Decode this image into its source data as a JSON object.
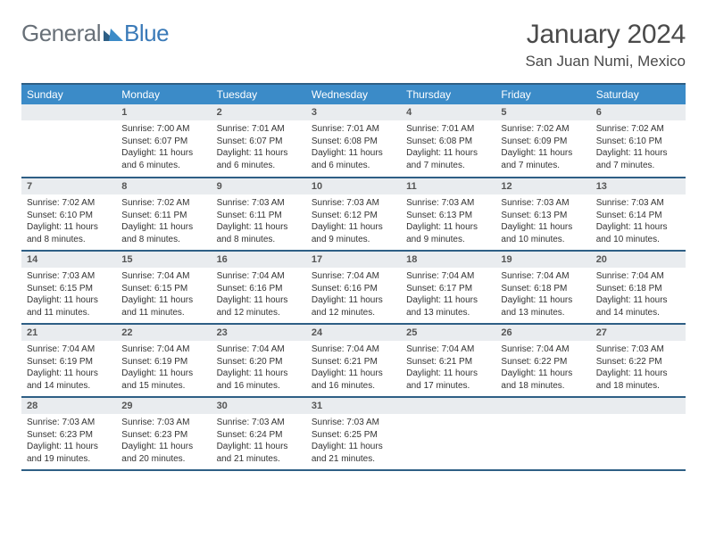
{
  "logo": {
    "part1": "General",
    "part2": "Blue"
  },
  "title": "January 2024",
  "location": "San Juan Numi, Mexico",
  "colors": {
    "header_bg": "#3b8bc8",
    "header_border": "#2e5f85",
    "daynum_bg": "#e9ecef",
    "logo_gray": "#687078",
    "logo_blue": "#3a7ab8"
  },
  "weekdays": [
    "Sunday",
    "Monday",
    "Tuesday",
    "Wednesday",
    "Thursday",
    "Friday",
    "Saturday"
  ],
  "weeks": [
    [
      {
        "day": "",
        "lines": []
      },
      {
        "day": "1",
        "lines": [
          "Sunrise: 7:00 AM",
          "Sunset: 6:07 PM",
          "Daylight: 11 hours and 6 minutes."
        ]
      },
      {
        "day": "2",
        "lines": [
          "Sunrise: 7:01 AM",
          "Sunset: 6:07 PM",
          "Daylight: 11 hours and 6 minutes."
        ]
      },
      {
        "day": "3",
        "lines": [
          "Sunrise: 7:01 AM",
          "Sunset: 6:08 PM",
          "Daylight: 11 hours and 6 minutes."
        ]
      },
      {
        "day": "4",
        "lines": [
          "Sunrise: 7:01 AM",
          "Sunset: 6:08 PM",
          "Daylight: 11 hours and 7 minutes."
        ]
      },
      {
        "day": "5",
        "lines": [
          "Sunrise: 7:02 AM",
          "Sunset: 6:09 PM",
          "Daylight: 11 hours and 7 minutes."
        ]
      },
      {
        "day": "6",
        "lines": [
          "Sunrise: 7:02 AM",
          "Sunset: 6:10 PM",
          "Daylight: 11 hours and 7 minutes."
        ]
      }
    ],
    [
      {
        "day": "7",
        "lines": [
          "Sunrise: 7:02 AM",
          "Sunset: 6:10 PM",
          "Daylight: 11 hours and 8 minutes."
        ]
      },
      {
        "day": "8",
        "lines": [
          "Sunrise: 7:02 AM",
          "Sunset: 6:11 PM",
          "Daylight: 11 hours and 8 minutes."
        ]
      },
      {
        "day": "9",
        "lines": [
          "Sunrise: 7:03 AM",
          "Sunset: 6:11 PM",
          "Daylight: 11 hours and 8 minutes."
        ]
      },
      {
        "day": "10",
        "lines": [
          "Sunrise: 7:03 AM",
          "Sunset: 6:12 PM",
          "Daylight: 11 hours and 9 minutes."
        ]
      },
      {
        "day": "11",
        "lines": [
          "Sunrise: 7:03 AM",
          "Sunset: 6:13 PM",
          "Daylight: 11 hours and 9 minutes."
        ]
      },
      {
        "day": "12",
        "lines": [
          "Sunrise: 7:03 AM",
          "Sunset: 6:13 PM",
          "Daylight: 11 hours and 10 minutes."
        ]
      },
      {
        "day": "13",
        "lines": [
          "Sunrise: 7:03 AM",
          "Sunset: 6:14 PM",
          "Daylight: 11 hours and 10 minutes."
        ]
      }
    ],
    [
      {
        "day": "14",
        "lines": [
          "Sunrise: 7:03 AM",
          "Sunset: 6:15 PM",
          "Daylight: 11 hours and 11 minutes."
        ]
      },
      {
        "day": "15",
        "lines": [
          "Sunrise: 7:04 AM",
          "Sunset: 6:15 PM",
          "Daylight: 11 hours and 11 minutes."
        ]
      },
      {
        "day": "16",
        "lines": [
          "Sunrise: 7:04 AM",
          "Sunset: 6:16 PM",
          "Daylight: 11 hours and 12 minutes."
        ]
      },
      {
        "day": "17",
        "lines": [
          "Sunrise: 7:04 AM",
          "Sunset: 6:16 PM",
          "Daylight: 11 hours and 12 minutes."
        ]
      },
      {
        "day": "18",
        "lines": [
          "Sunrise: 7:04 AM",
          "Sunset: 6:17 PM",
          "Daylight: 11 hours and 13 minutes."
        ]
      },
      {
        "day": "19",
        "lines": [
          "Sunrise: 7:04 AM",
          "Sunset: 6:18 PM",
          "Daylight: 11 hours and 13 minutes."
        ]
      },
      {
        "day": "20",
        "lines": [
          "Sunrise: 7:04 AM",
          "Sunset: 6:18 PM",
          "Daylight: 11 hours and 14 minutes."
        ]
      }
    ],
    [
      {
        "day": "21",
        "lines": [
          "Sunrise: 7:04 AM",
          "Sunset: 6:19 PM",
          "Daylight: 11 hours and 14 minutes."
        ]
      },
      {
        "day": "22",
        "lines": [
          "Sunrise: 7:04 AM",
          "Sunset: 6:19 PM",
          "Daylight: 11 hours and 15 minutes."
        ]
      },
      {
        "day": "23",
        "lines": [
          "Sunrise: 7:04 AM",
          "Sunset: 6:20 PM",
          "Daylight: 11 hours and 16 minutes."
        ]
      },
      {
        "day": "24",
        "lines": [
          "Sunrise: 7:04 AM",
          "Sunset: 6:21 PM",
          "Daylight: 11 hours and 16 minutes."
        ]
      },
      {
        "day": "25",
        "lines": [
          "Sunrise: 7:04 AM",
          "Sunset: 6:21 PM",
          "Daylight: 11 hours and 17 minutes."
        ]
      },
      {
        "day": "26",
        "lines": [
          "Sunrise: 7:04 AM",
          "Sunset: 6:22 PM",
          "Daylight: 11 hours and 18 minutes."
        ]
      },
      {
        "day": "27",
        "lines": [
          "Sunrise: 7:03 AM",
          "Sunset: 6:22 PM",
          "Daylight: 11 hours and 18 minutes."
        ]
      }
    ],
    [
      {
        "day": "28",
        "lines": [
          "Sunrise: 7:03 AM",
          "Sunset: 6:23 PM",
          "Daylight: 11 hours and 19 minutes."
        ]
      },
      {
        "day": "29",
        "lines": [
          "Sunrise: 7:03 AM",
          "Sunset: 6:23 PM",
          "Daylight: 11 hours and 20 minutes."
        ]
      },
      {
        "day": "30",
        "lines": [
          "Sunrise: 7:03 AM",
          "Sunset: 6:24 PM",
          "Daylight: 11 hours and 21 minutes."
        ]
      },
      {
        "day": "31",
        "lines": [
          "Sunrise: 7:03 AM",
          "Sunset: 6:25 PM",
          "Daylight: 11 hours and 21 minutes."
        ]
      },
      {
        "day": "",
        "lines": []
      },
      {
        "day": "",
        "lines": []
      },
      {
        "day": "",
        "lines": []
      }
    ]
  ]
}
